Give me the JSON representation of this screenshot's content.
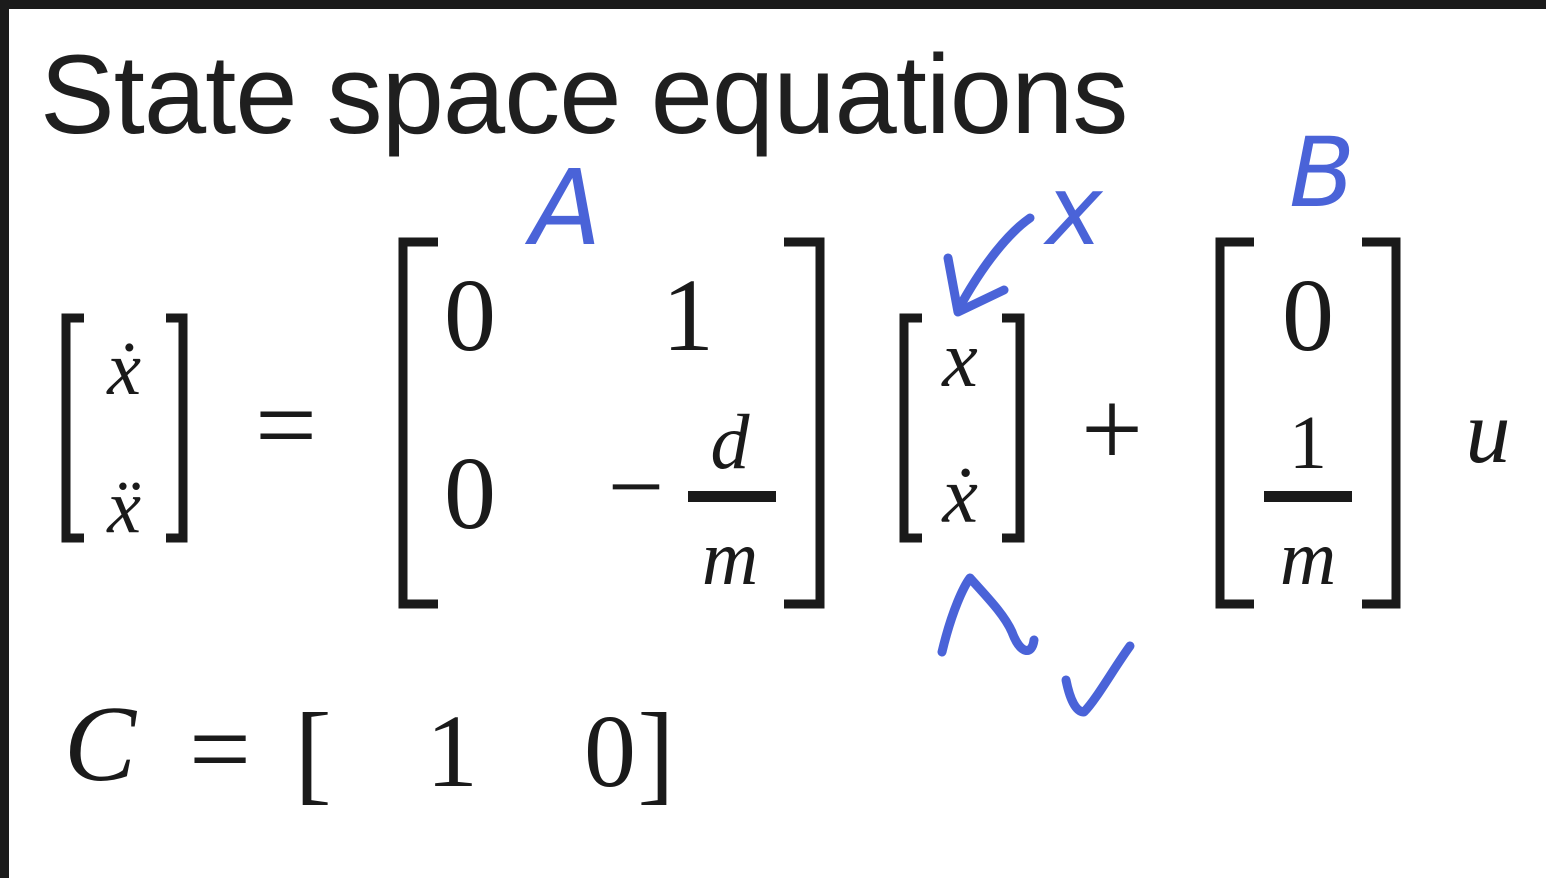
{
  "title": "State space equations",
  "equation1": {
    "lhs": [
      "ẋ",
      "ẍ"
    ],
    "equals": "=",
    "matrixA": {
      "row1": [
        "0",
        "1"
      ],
      "row2_first": "0",
      "row2_minus": "−",
      "row2_num": "d",
      "row2_den": "m"
    },
    "stateVec": [
      "x",
      "ẋ"
    ],
    "plus": "+",
    "matrixB": {
      "top": "0",
      "num": "1",
      "den": "m"
    },
    "input": "u"
  },
  "equation2": {
    "lhs": "C",
    "equals": "=",
    "open": "[",
    "values": [
      "1",
      "0"
    ],
    "close": "]"
  },
  "annotations": {
    "a_label": "A",
    "b_label": "B",
    "x_label": "x",
    "check": "✓",
    "color": "#4a63d8"
  }
}
